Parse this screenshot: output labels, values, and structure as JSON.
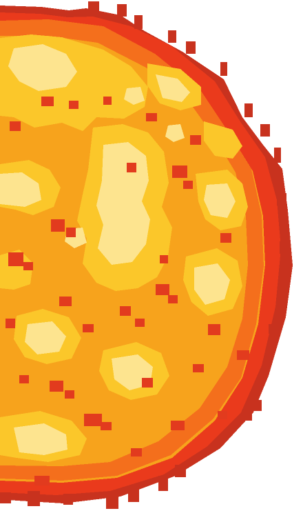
{
  "image": {
    "subject": "pixel-art-sun",
    "colors": {
      "background": "#ffffff",
      "edge_dark": "#c8321e",
      "edge_red": "#ea3a1c",
      "rim_orange": "#f46f1c",
      "body_orange": "#f7a31c",
      "hot_yellow": "#fbc72a",
      "pale_yellow": "#fde48f",
      "flare_red": "#e23b1e"
    }
  }
}
